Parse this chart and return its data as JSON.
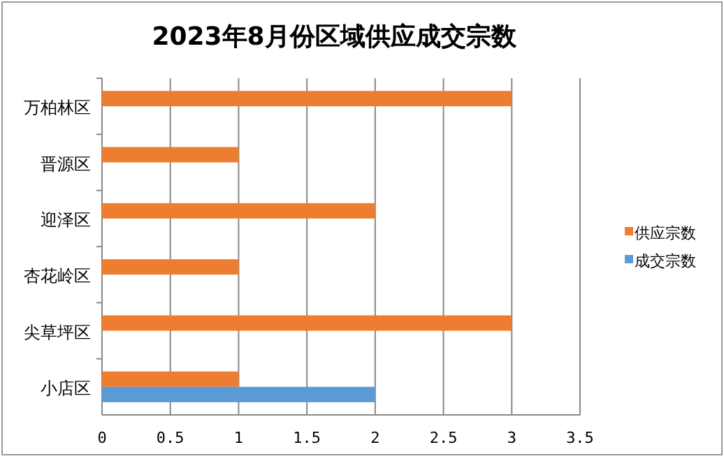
{
  "chart_data": {
    "type": "bar",
    "orientation": "horizontal",
    "title": "2023年8月份区域供应成交宗数",
    "categories": [
      "万柏林区",
      "晋源区",
      "迎泽区",
      "杏花岭区",
      "尖草坪区",
      "小店区"
    ],
    "series": [
      {
        "name": "供应宗数",
        "color": "#ed7d31",
        "values": [
          3,
          1,
          2,
          1,
          3,
          1
        ]
      },
      {
        "name": "成交宗数",
        "color": "#5b9bd5",
        "values": [
          null,
          null,
          null,
          null,
          null,
          2
        ]
      }
    ],
    "xlim": [
      0,
      3.5
    ],
    "xticks": [
      0,
      0.5,
      1,
      1.5,
      2,
      2.5,
      3,
      3.5
    ],
    "grid": "x",
    "legend": "right"
  }
}
